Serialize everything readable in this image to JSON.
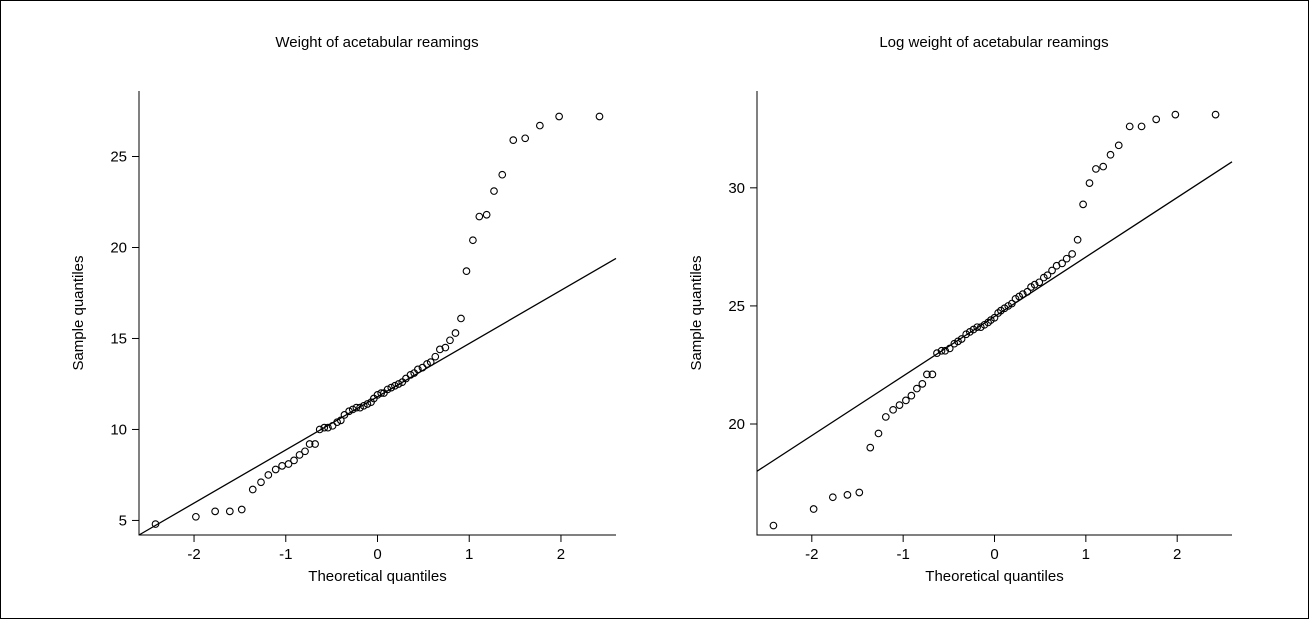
{
  "chart_data": [
    {
      "type": "scatter",
      "title": "Weight of acetabular reamings",
      "xlabel": "Theoretical quantiles",
      "ylabel": "Sample quantiles",
      "xlim": [
        -2.6,
        2.6
      ],
      "ylim": [
        4.2,
        28.6
      ],
      "xticks": [
        -2,
        -1,
        0,
        1,
        2
      ],
      "yticks": [
        5,
        10,
        15,
        20,
        25
      ],
      "reference_line": {
        "x0": -2.6,
        "y0": 4.2,
        "x1": 2.6,
        "y1": 19.4
      },
      "x": [
        -2.42,
        -1.98,
        -1.77,
        -1.61,
        -1.48,
        -1.36,
        -1.27,
        -1.19,
        -1.11,
        -1.04,
        -0.97,
        -0.91,
        -0.85,
        -0.79,
        -0.74,
        -0.68,
        -0.63,
        -0.58,
        -0.54,
        -0.49,
        -0.44,
        -0.4,
        -0.36,
        -0.31,
        -0.27,
        -0.23,
        -0.19,
        -0.15,
        -0.11,
        -0.07,
        -0.04,
        0.0,
        0.04,
        0.07,
        0.11,
        0.15,
        0.19,
        0.23,
        0.27,
        0.31,
        0.36,
        0.4,
        0.44,
        0.49,
        0.54,
        0.58,
        0.63,
        0.68,
        0.74,
        0.79,
        0.85,
        0.91,
        0.97,
        1.04,
        1.11,
        1.19,
        1.27,
        1.36,
        1.48,
        1.61,
        1.77,
        1.98,
        2.42
      ],
      "y": [
        4.8,
        5.2,
        5.5,
        5.5,
        5.6,
        6.7,
        7.1,
        7.5,
        7.8,
        8.0,
        8.1,
        8.3,
        8.6,
        8.8,
        9.2,
        9.2,
        10.0,
        10.1,
        10.1,
        10.2,
        10.4,
        10.5,
        10.8,
        11.0,
        11.1,
        11.2,
        11.2,
        11.3,
        11.4,
        11.5,
        11.7,
        11.9,
        12.0,
        12.0,
        12.2,
        12.3,
        12.4,
        12.5,
        12.6,
        12.8,
        13.0,
        13.1,
        13.3,
        13.4,
        13.6,
        13.7,
        14.0,
        14.4,
        14.5,
        14.9,
        15.3,
        16.1,
        18.7,
        20.4,
        21.7,
        21.8,
        23.1,
        24.0,
        25.9,
        26.0,
        26.7,
        27.2,
        27.2
      ]
    },
    {
      "type": "scatter",
      "title": "Log weight of acetabular reamings",
      "xlabel": "Theoretical quantiles",
      "ylabel": "Sample quantiles",
      "xlim": [
        -2.6,
        2.6
      ],
      "ylim": [
        15.3,
        34.1
      ],
      "xticks": [
        -2,
        -1,
        0,
        1,
        2
      ],
      "yticks": [
        20,
        25,
        30
      ],
      "reference_line": {
        "x0": -2.6,
        "y0": 18.0,
        "x1": 2.6,
        "y1": 31.1
      },
      "x": [
        -2.42,
        -1.98,
        -1.77,
        -1.61,
        -1.48,
        -1.36,
        -1.27,
        -1.19,
        -1.11,
        -1.04,
        -0.97,
        -0.91,
        -0.85,
        -0.79,
        -0.74,
        -0.68,
        -0.63,
        -0.58,
        -0.54,
        -0.49,
        -0.44,
        -0.4,
        -0.36,
        -0.31,
        -0.27,
        -0.23,
        -0.19,
        -0.15,
        -0.11,
        -0.07,
        -0.04,
        0.0,
        0.04,
        0.07,
        0.11,
        0.15,
        0.19,
        0.23,
        0.27,
        0.31,
        0.36,
        0.4,
        0.44,
        0.49,
        0.54,
        0.58,
        0.63,
        0.68,
        0.74,
        0.79,
        0.85,
        0.91,
        0.97,
        1.04,
        1.11,
        1.19,
        1.27,
        1.36,
        1.48,
        1.61,
        1.77,
        1.98,
        2.42
      ],
      "y": [
        15.7,
        16.4,
        16.9,
        17.0,
        17.1,
        19.0,
        19.6,
        20.3,
        20.6,
        20.8,
        21.0,
        21.2,
        21.5,
        21.7,
        22.1,
        22.1,
        23.0,
        23.1,
        23.1,
        23.2,
        23.4,
        23.5,
        23.6,
        23.8,
        23.9,
        24.0,
        24.1,
        24.1,
        24.2,
        24.3,
        24.4,
        24.5,
        24.7,
        24.8,
        24.9,
        25.0,
        25.1,
        25.3,
        25.4,
        25.5,
        25.6,
        25.8,
        25.9,
        26.0,
        26.2,
        26.3,
        26.5,
        26.7,
        26.8,
        27.0,
        27.2,
        27.8,
        29.3,
        30.2,
        30.8,
        30.9,
        31.4,
        31.8,
        32.6,
        32.6,
        32.9,
        33.1,
        33.1
      ]
    }
  ]
}
